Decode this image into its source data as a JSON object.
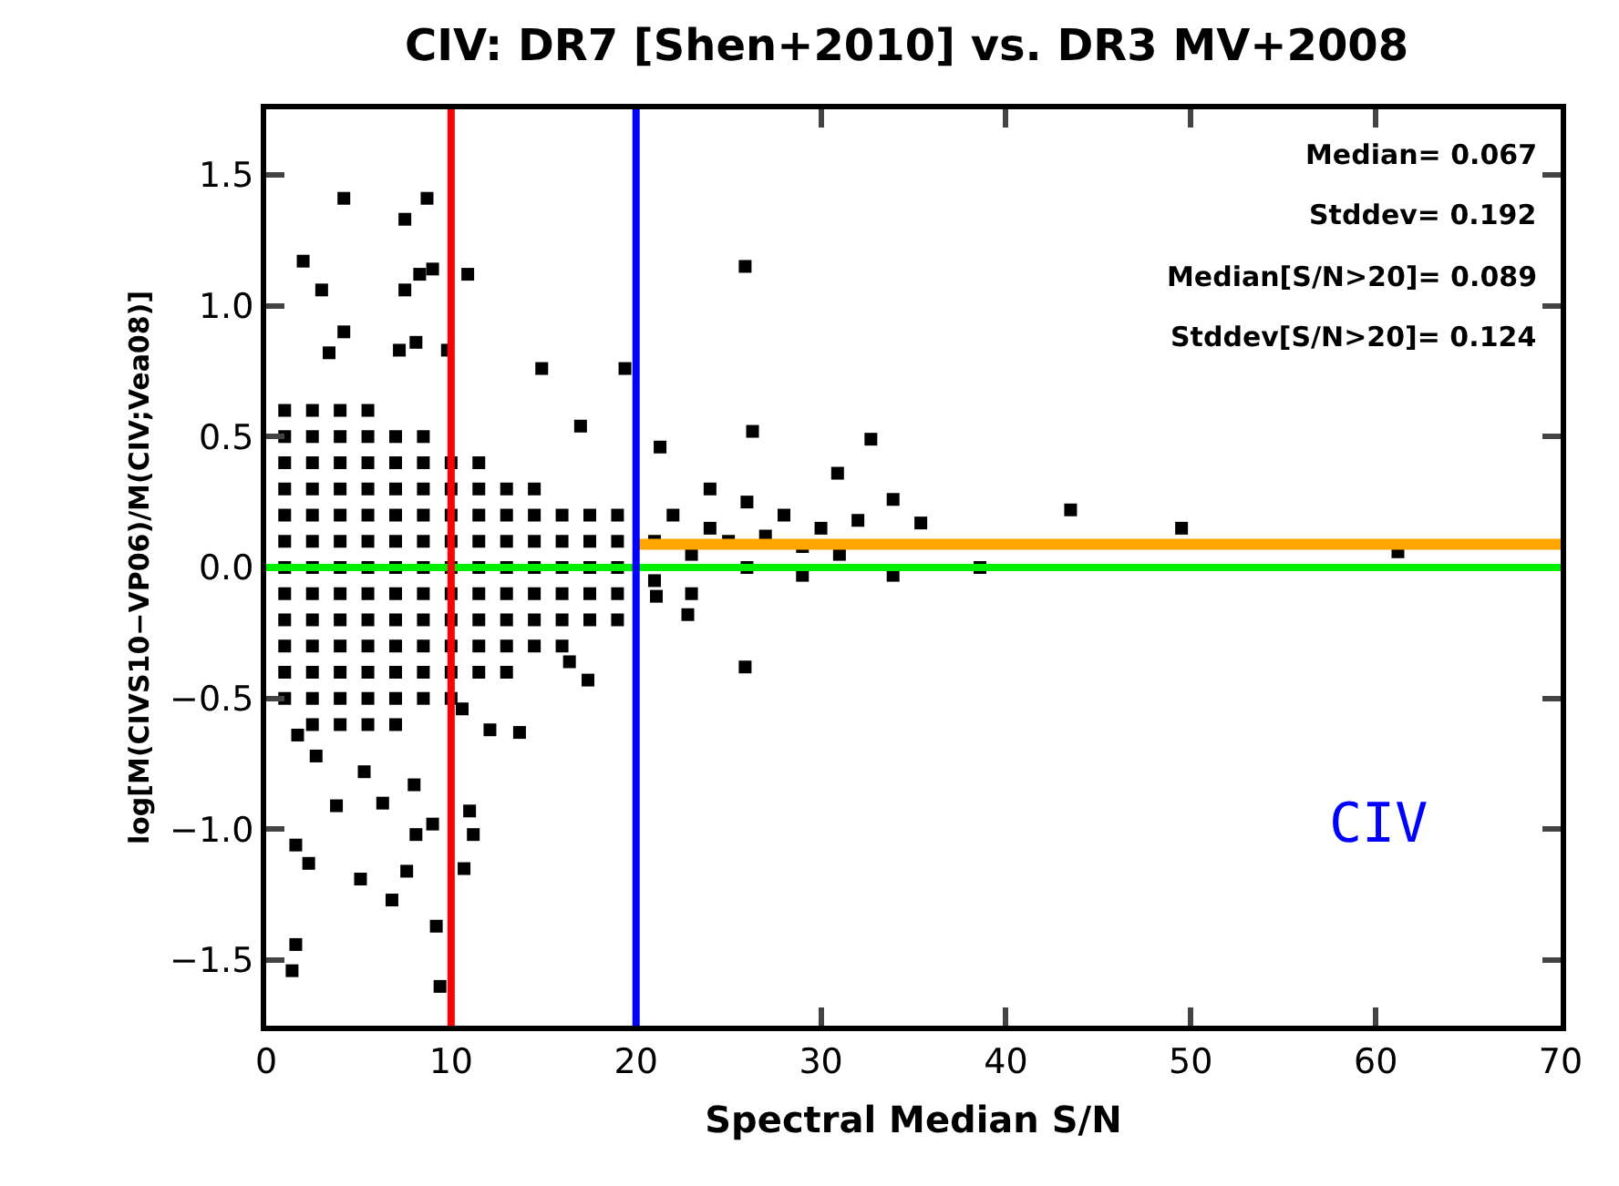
{
  "chart_data": {
    "type": "scatter",
    "title": "CIV: DR7 [Shen+2010] vs. DR3 MV+2008",
    "xlabel": "Spectral Median S/N",
    "ylabel": "log[M(CIVS10−VP06)/M(CIV;Vea08)]",
    "xlim": [
      0,
      70
    ],
    "xticks": [
      0,
      10,
      20,
      30,
      40,
      50,
      60,
      70
    ],
    "ylim": [
      -1.75,
      1.75
    ],
    "yticks": [
      {
        "value": -1.5,
        "label": "−1.5"
      },
      {
        "value": -1.0,
        "label": "−1.0"
      },
      {
        "value": -0.5,
        "label": "−0.5"
      },
      {
        "value": 0.0,
        "label": "0.0"
      },
      {
        "value": 0.5,
        "label": "0.5"
      },
      {
        "value": 1.0,
        "label": "1.0"
      },
      {
        "value": 1.5,
        "label": "1.5"
      }
    ],
    "series": [
      {
        "color": "#000000",
        "marker": "square",
        "x": [
          1,
          1,
          1,
          1,
          1,
          1,
          1,
          1,
          1,
          1,
          1,
          1,
          2.5,
          2.5,
          2.5,
          2.5,
          2.5,
          2.5,
          2.5,
          2.5,
          2.5,
          2.5,
          2.5,
          2.5,
          2.5,
          4,
          4,
          4,
          4,
          4,
          4,
          4,
          4,
          4,
          4,
          4,
          4,
          4,
          5.5,
          5.5,
          5.5,
          5.5,
          5.5,
          5.5,
          5.5,
          5.5,
          5.5,
          5.5,
          5.5,
          5.5,
          5.5,
          7,
          7,
          7,
          7,
          7,
          7,
          7,
          7,
          7,
          7,
          7,
          7,
          8.5,
          8.5,
          8.5,
          8.5,
          8.5,
          8.5,
          8.5,
          8.5,
          8.5,
          8.5,
          8.5,
          10,
          10,
          10,
          10,
          10,
          10,
          10,
          10,
          10,
          10,
          11.5,
          11.5,
          11.5,
          11.5,
          11.5,
          11.5,
          11.5,
          11.5,
          11.5,
          13,
          13,
          13,
          13,
          13,
          13,
          13,
          13,
          14.5,
          14.5,
          14.5,
          14.5,
          14.5,
          14.5,
          14.5,
          16,
          16,
          16,
          16,
          16,
          16,
          17.5,
          17.5,
          17.5,
          17.5,
          17.5,
          19,
          19,
          19,
          19,
          19,
          21,
          22,
          23,
          24,
          25,
          26,
          27,
          28,
          29,
          30,
          31,
          32,
          21,
          23,
          24,
          26,
          4.2,
          8.7,
          7.5,
          2.0,
          9.0,
          8.3,
          10.9,
          7.5,
          3.0,
          25.9,
          4.2,
          8.1,
          7.2,
          9.8,
          3.4,
          14.9,
          19.4,
          26.3,
          32.7,
          17.0,
          21.3,
          30.9,
          33.9,
          35.4,
          43.5,
          49.5,
          61.2,
          38.6,
          25.9,
          33.9,
          29.0,
          22.8,
          21.1,
          17.4,
          16.4,
          13.7,
          12.1,
          10.6,
          11.0,
          11.2,
          10.7,
          9.2,
          9.4,
          6.8,
          7.6,
          5.1,
          8.1,
          3.8,
          9.0,
          2.3,
          1.6,
          1.6,
          1.4,
          5.3,
          6.3,
          8.0,
          2.7,
          1.7
        ],
        "values": [
          -0.5,
          -0.4,
          -0.3,
          -0.2,
          -0.1,
          0,
          0.1,
          0.2,
          0.3,
          0.4,
          0.5,
          0.6,
          -0.6,
          -0.5,
          -0.4,
          -0.3,
          -0.2,
          -0.1,
          0,
          0.1,
          0.2,
          0.3,
          0.4,
          0.5,
          0.6,
          -0.6,
          -0.5,
          -0.4,
          -0.3,
          -0.2,
          -0.1,
          0,
          0.1,
          0.2,
          0.3,
          0.4,
          0.5,
          0.6,
          -0.6,
          -0.5,
          -0.4,
          -0.3,
          -0.2,
          -0.1,
          0,
          0.1,
          0.2,
          0.3,
          0.4,
          0.5,
          0.6,
          -0.6,
          -0.5,
          -0.4,
          -0.3,
          -0.2,
          -0.1,
          0,
          0.1,
          0.2,
          0.3,
          0.4,
          0.5,
          -0.5,
          -0.4,
          -0.3,
          -0.2,
          -0.1,
          0,
          0.1,
          0.2,
          0.3,
          0.4,
          0.5,
          -0.5,
          -0.4,
          -0.3,
          -0.2,
          -0.1,
          0,
          0.1,
          0.2,
          0.3,
          0.4,
          -0.4,
          -0.3,
          -0.2,
          -0.1,
          0,
          0.1,
          0.2,
          0.3,
          0.4,
          -0.4,
          -0.3,
          -0.2,
          -0.1,
          0,
          0.1,
          0.2,
          0.3,
          -0.3,
          -0.2,
          -0.1,
          0,
          0.1,
          0.2,
          0.3,
          -0.3,
          -0.2,
          -0.1,
          0,
          0.1,
          0.2,
          -0.2,
          -0.1,
          0,
          0.1,
          0.2,
          -0.2,
          -0.1,
          0,
          0.1,
          0.2,
          0.1,
          0.2,
          0.05,
          0.15,
          0.1,
          0.0,
          0.12,
          0.2,
          0.08,
          0.15,
          0.05,
          0.18,
          -0.05,
          -0.1,
          0.3,
          0.25,
          1.41,
          1.41,
          1.33,
          1.17,
          1.14,
          1.12,
          1.12,
          1.06,
          1.06,
          1.15,
          0.9,
          0.86,
          0.83,
          0.83,
          0.82,
          0.76,
          0.76,
          0.52,
          0.49,
          0.54,
          0.46,
          0.36,
          0.26,
          0.17,
          0.22,
          0.15,
          0.06,
          0.0,
          -0.38,
          -0.03,
          -0.03,
          -0.18,
          -0.11,
          -0.43,
          -0.36,
          -0.63,
          -0.62,
          -0.54,
          -0.93,
          -1.02,
          -1.15,
          -1.37,
          -1.6,
          -1.27,
          -1.16,
          -1.19,
          -1.02,
          -0.91,
          -0.98,
          -1.13,
          -1.06,
          -1.44,
          -1.54,
          -0.78,
          -0.9,
          -0.83,
          -0.72,
          -0.64
        ]
      },
      {
        "type": "line",
        "color": "#ffa500",
        "x": [
          20,
          70
        ],
        "values": [
          0.089,
          0.089
        ]
      }
    ],
    "ref_lines": [
      {
        "axis": "y",
        "value": 0.0,
        "color": "#00ee00"
      },
      {
        "axis": "x",
        "value": 10,
        "color": "#ff0000"
      },
      {
        "axis": "x",
        "value": 20,
        "color": "#0000ff"
      }
    ],
    "annotations": [
      "Median= 0.067",
      "Stddev= 0.192",
      "Median[S/N>20]= 0.089",
      "Stddev[S/N>20]= 0.124",
      "CIV"
    ]
  }
}
